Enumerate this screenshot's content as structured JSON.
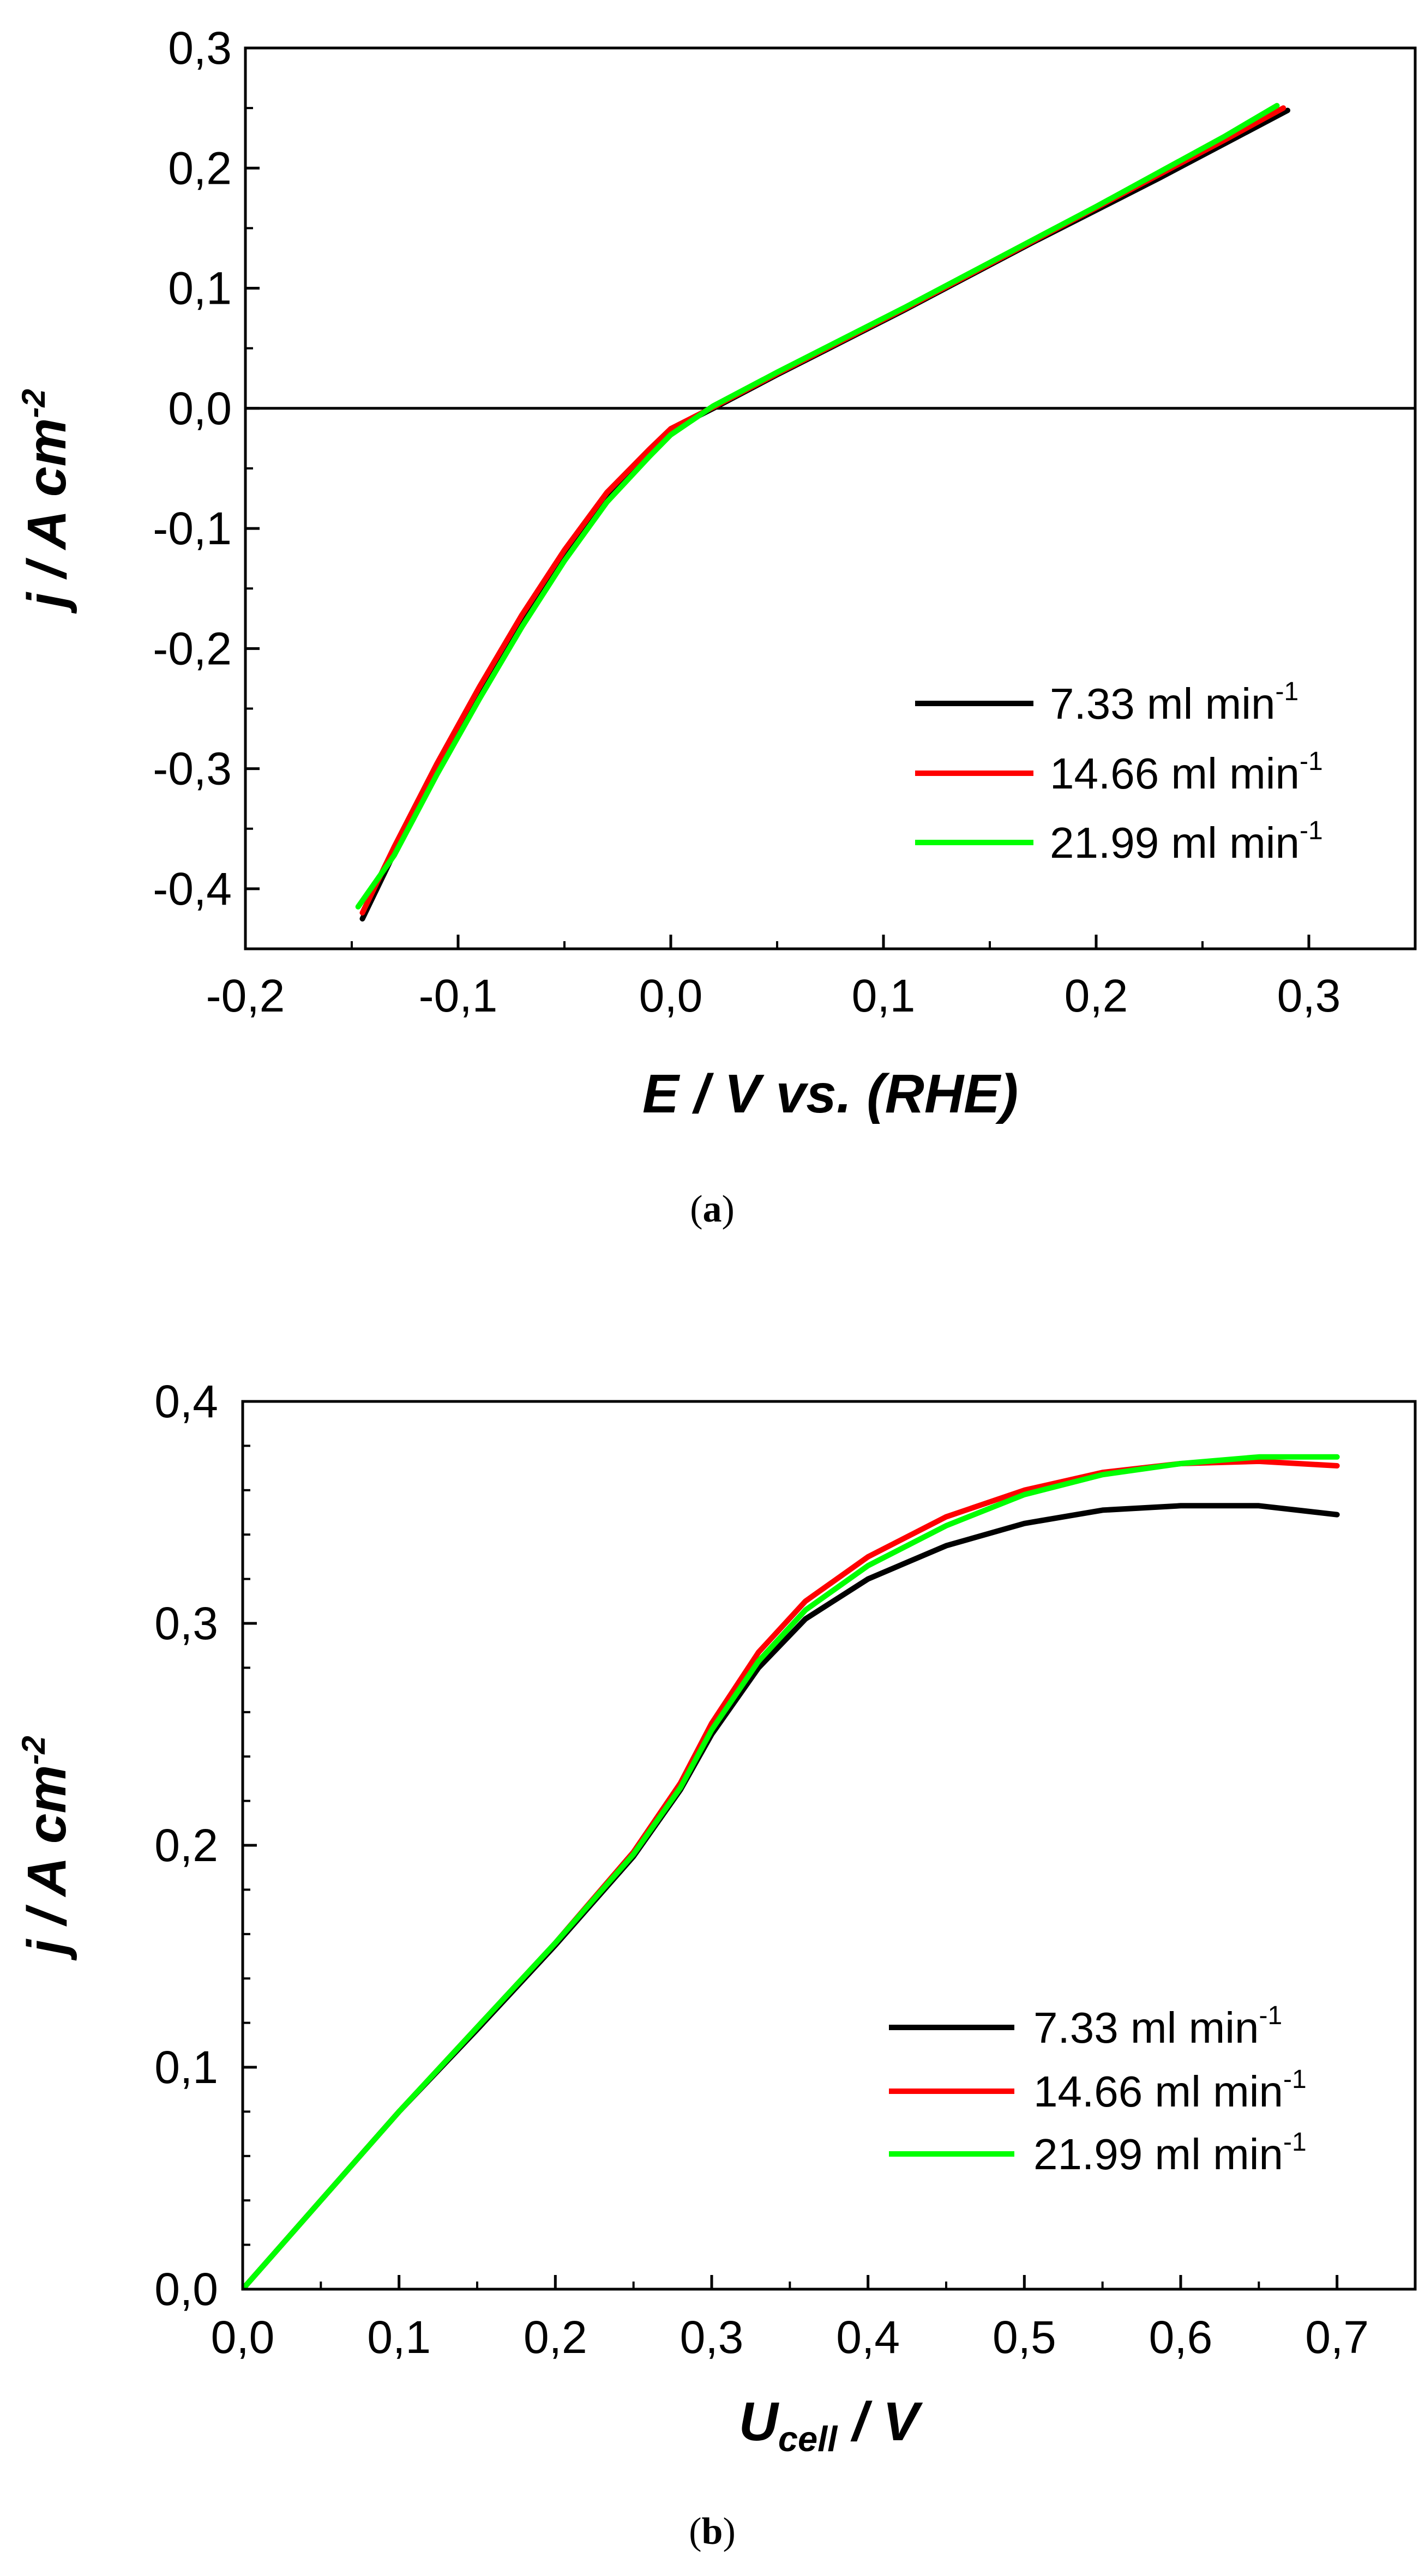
{
  "chart_data": [
    {
      "panel": "a",
      "type": "line",
      "caption_open": "(",
      "caption": "a",
      "caption_close": ")",
      "xlabel": "E / V vs. (RHE)",
      "ylabel_main": "j / A cm",
      "ylabel_sup": "-2",
      "xlim": [
        -0.2,
        0.35
      ],
      "ylim": [
        -0.45,
        0.3
      ],
      "xticks": [
        -0.2,
        -0.1,
        0.0,
        0.1,
        0.2,
        0.3
      ],
      "yticks": [
        -0.4,
        -0.3,
        -0.2,
        -0.1,
        0.0,
        0.1,
        0.2,
        0.3
      ],
      "xtick_labels": [
        "-0,2",
        "-0,1",
        "0,0",
        "0,1",
        "0,2",
        "0,3"
      ],
      "ytick_labels": [
        "-0,4",
        "-0,3",
        "-0,2",
        "-0,1",
        "0,0",
        "0,1",
        "0,2",
        "0,3"
      ],
      "zero_line": true,
      "legend_position": "lower-right",
      "series": [
        {
          "name": "7.33 ml min",
          "name_sup": "-1",
          "color": "#000000",
          "x": [
            -0.145,
            -0.13,
            -0.11,
            -0.09,
            -0.07,
            -0.05,
            -0.03,
            -0.01,
            0.0,
            0.02,
            0.05,
            0.08,
            0.11,
            0.14,
            0.17,
            0.2,
            0.23,
            0.26,
            0.29
          ],
          "y": [
            -0.425,
            -0.37,
            -0.3,
            -0.235,
            -0.175,
            -0.12,
            -0.072,
            -0.035,
            -0.018,
            0.0,
            0.028,
            0.055,
            0.082,
            0.11,
            0.138,
            0.165,
            0.192,
            0.22,
            0.248
          ]
        },
        {
          "name": "14.66 ml min",
          "name_sup": "-1",
          "color": "#ff0000",
          "x": [
            -0.145,
            -0.13,
            -0.11,
            -0.09,
            -0.07,
            -0.05,
            -0.03,
            -0.01,
            0.0,
            0.02,
            0.05,
            0.08,
            0.11,
            0.14,
            0.17,
            0.2,
            0.23,
            0.26,
            0.288
          ],
          "y": [
            -0.42,
            -0.365,
            -0.296,
            -0.232,
            -0.172,
            -0.118,
            -0.07,
            -0.034,
            -0.017,
            0.001,
            0.029,
            0.056,
            0.083,
            0.111,
            0.139,
            0.167,
            0.195,
            0.223,
            0.25
          ]
        },
        {
          "name": "21.99 ml min",
          "name_sup": "-1",
          "color": "#00ff00",
          "x": [
            -0.147,
            -0.13,
            -0.11,
            -0.09,
            -0.07,
            -0.05,
            -0.03,
            -0.01,
            0.0,
            0.02,
            0.05,
            0.08,
            0.11,
            0.14,
            0.17,
            0.2,
            0.23,
            0.26,
            0.285
          ],
          "y": [
            -0.415,
            -0.372,
            -0.305,
            -0.242,
            -0.182,
            -0.127,
            -0.078,
            -0.04,
            -0.022,
            0.002,
            0.03,
            0.057,
            0.084,
            0.112,
            0.14,
            0.168,
            0.197,
            0.226,
            0.252
          ]
        }
      ]
    },
    {
      "panel": "b",
      "type": "line",
      "caption_open": "(",
      "caption": "b",
      "caption_close": ")",
      "xlabel_main": "U",
      "xlabel_sub": "cell",
      "xlabel_rest": " / V",
      "ylabel_main": "j / A cm",
      "ylabel_sup": "-2",
      "xlim": [
        0.0,
        0.75
      ],
      "ylim": [
        0.0,
        0.4
      ],
      "xticks": [
        0.0,
        0.1,
        0.2,
        0.3,
        0.4,
        0.5,
        0.6,
        0.7
      ],
      "yticks": [
        0.0,
        0.1,
        0.2,
        0.3,
        0.4
      ],
      "xtick_labels": [
        "0,0",
        "0,1",
        "0,2",
        "0,3",
        "0,4",
        "0,5",
        "0,6",
        "0,7"
      ],
      "ytick_labels": [
        "0,0",
        "0,1",
        "0,2",
        "0,3",
        "0,4"
      ],
      "zero_line": false,
      "legend_position": "lower-right",
      "series": [
        {
          "name": "7.33 ml min",
          "name_sup": "-1",
          "color": "#000000",
          "x": [
            0.0,
            0.05,
            0.1,
            0.15,
            0.2,
            0.25,
            0.28,
            0.3,
            0.33,
            0.36,
            0.4,
            0.45,
            0.5,
            0.55,
            0.6,
            0.65,
            0.7
          ],
          "y": [
            0.0,
            0.04,
            0.08,
            0.117,
            0.155,
            0.195,
            0.225,
            0.25,
            0.28,
            0.302,
            0.32,
            0.335,
            0.345,
            0.351,
            0.353,
            0.353,
            0.349
          ]
        },
        {
          "name": "14.66 ml min",
          "name_sup": "-1",
          "color": "#ff0000",
          "x": [
            0.0,
            0.05,
            0.1,
            0.15,
            0.2,
            0.25,
            0.28,
            0.3,
            0.33,
            0.36,
            0.4,
            0.45,
            0.5,
            0.55,
            0.6,
            0.65,
            0.7
          ],
          "y": [
            0.0,
            0.04,
            0.08,
            0.118,
            0.156,
            0.197,
            0.228,
            0.255,
            0.287,
            0.31,
            0.33,
            0.348,
            0.36,
            0.368,
            0.372,
            0.373,
            0.371
          ]
        },
        {
          "name": "21.99 ml min",
          "name_sup": "-1",
          "color": "#00ff00",
          "x": [
            0.0,
            0.05,
            0.1,
            0.15,
            0.2,
            0.25,
            0.28,
            0.3,
            0.33,
            0.36,
            0.4,
            0.45,
            0.5,
            0.55,
            0.6,
            0.65,
            0.7
          ],
          "y": [
            0.0,
            0.04,
            0.08,
            0.118,
            0.156,
            0.196,
            0.226,
            0.252,
            0.283,
            0.306,
            0.326,
            0.344,
            0.358,
            0.367,
            0.372,
            0.375,
            0.375
          ]
        }
      ]
    }
  ]
}
